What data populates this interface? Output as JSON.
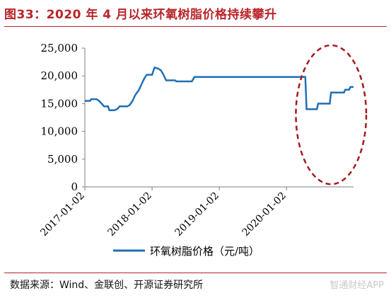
{
  "title": "图33：2020 年 4 月以来环氧树脂价格持续攀升",
  "source": "数据来源：Wind、金联创、开源证券研究所",
  "watermark": "智通财经APP",
  "colors": {
    "title": "#b8242a",
    "series": "#1f6fb5",
    "annotation": "#a31a20"
  },
  "chart_data": {
    "type": "line",
    "title": "",
    "xlabel": "",
    "ylabel": "",
    "ylim": [
      0,
      25000
    ],
    "yticks": [
      0,
      5000,
      10000,
      15000,
      20000,
      25000
    ],
    "ytick_labels": [
      "0",
      "5,000",
      "10,000",
      "15,000",
      "20,000",
      "25,000"
    ],
    "xticks": [
      "2017-01-02",
      "2018-01-02",
      "2019-01-02",
      "2020-01-02"
    ],
    "xlim": [
      "2017-01-02",
      "2020-12-31"
    ],
    "grid": false,
    "legend": "bottom",
    "series": [
      {
        "name": "环氧树脂价格（元/吨）",
        "color": "#1f6fb5",
        "points": [
          [
            "2017-01-02",
            15500
          ],
          [
            "2017-01-30",
            15500
          ],
          [
            "2017-02-06",
            15800
          ],
          [
            "2017-03-06",
            15800
          ],
          [
            "2017-03-20",
            15500
          ],
          [
            "2017-04-03",
            15000
          ],
          [
            "2017-04-17",
            14500
          ],
          [
            "2017-05-08",
            14500
          ],
          [
            "2017-05-15",
            13800
          ],
          [
            "2017-06-12",
            13800
          ],
          [
            "2017-06-26",
            14000
          ],
          [
            "2017-07-10",
            14500
          ],
          [
            "2017-08-21",
            14500
          ],
          [
            "2017-09-04",
            14800
          ],
          [
            "2017-09-18",
            15500
          ],
          [
            "2017-10-02",
            16500
          ],
          [
            "2017-10-23",
            17500
          ],
          [
            "2017-11-06",
            18500
          ],
          [
            "2017-11-20",
            19500
          ],
          [
            "2017-12-04",
            20200
          ],
          [
            "2018-01-02",
            20200
          ],
          [
            "2018-01-15",
            21500
          ],
          [
            "2018-02-05",
            21300
          ],
          [
            "2018-02-19",
            21000
          ],
          [
            "2018-03-05",
            20200
          ],
          [
            "2018-03-19",
            19200
          ],
          [
            "2018-05-07",
            19200
          ],
          [
            "2018-05-14",
            19000
          ],
          [
            "2018-08-06",
            19000
          ],
          [
            "2018-08-20",
            19800
          ],
          [
            "2020-04-13",
            19800
          ],
          [
            "2020-04-20",
            14000
          ],
          [
            "2020-06-15",
            14000
          ],
          [
            "2020-06-22",
            15000
          ],
          [
            "2020-08-24",
            15000
          ],
          [
            "2020-08-31",
            17000
          ],
          [
            "2020-11-09",
            17000
          ],
          [
            "2020-11-16",
            17500
          ],
          [
            "2020-12-07",
            17500
          ],
          [
            "2020-12-14",
            18000
          ],
          [
            "2020-12-31",
            18000
          ]
        ]
      }
    ],
    "annotations": [
      {
        "type": "ellipse",
        "style": "dashed",
        "color": "#a31a20",
        "x_range": [
          "2020-03-16",
          "2020-12-31"
        ],
        "y_range": [
          1500,
          24500
        ]
      }
    ]
  }
}
